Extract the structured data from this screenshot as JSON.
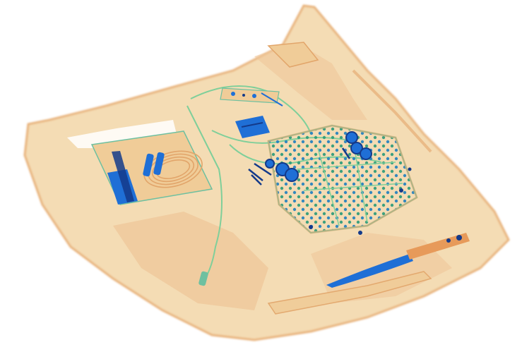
{
  "image": {
    "kind": "x-ray baggage scan",
    "colors": {
      "background": "#ffffff",
      "bag_fill": "#f4dcb4",
      "bag_fill_dark": "#eec497",
      "bag_edge": "#e8b27a",
      "organic_orange": "#e79a5a",
      "mixed_green": "#6ec0a0",
      "metal_blue": "#1f6fd6",
      "metal_dark": "#143a8a",
      "cable_green": "#7fcf9a"
    }
  }
}
